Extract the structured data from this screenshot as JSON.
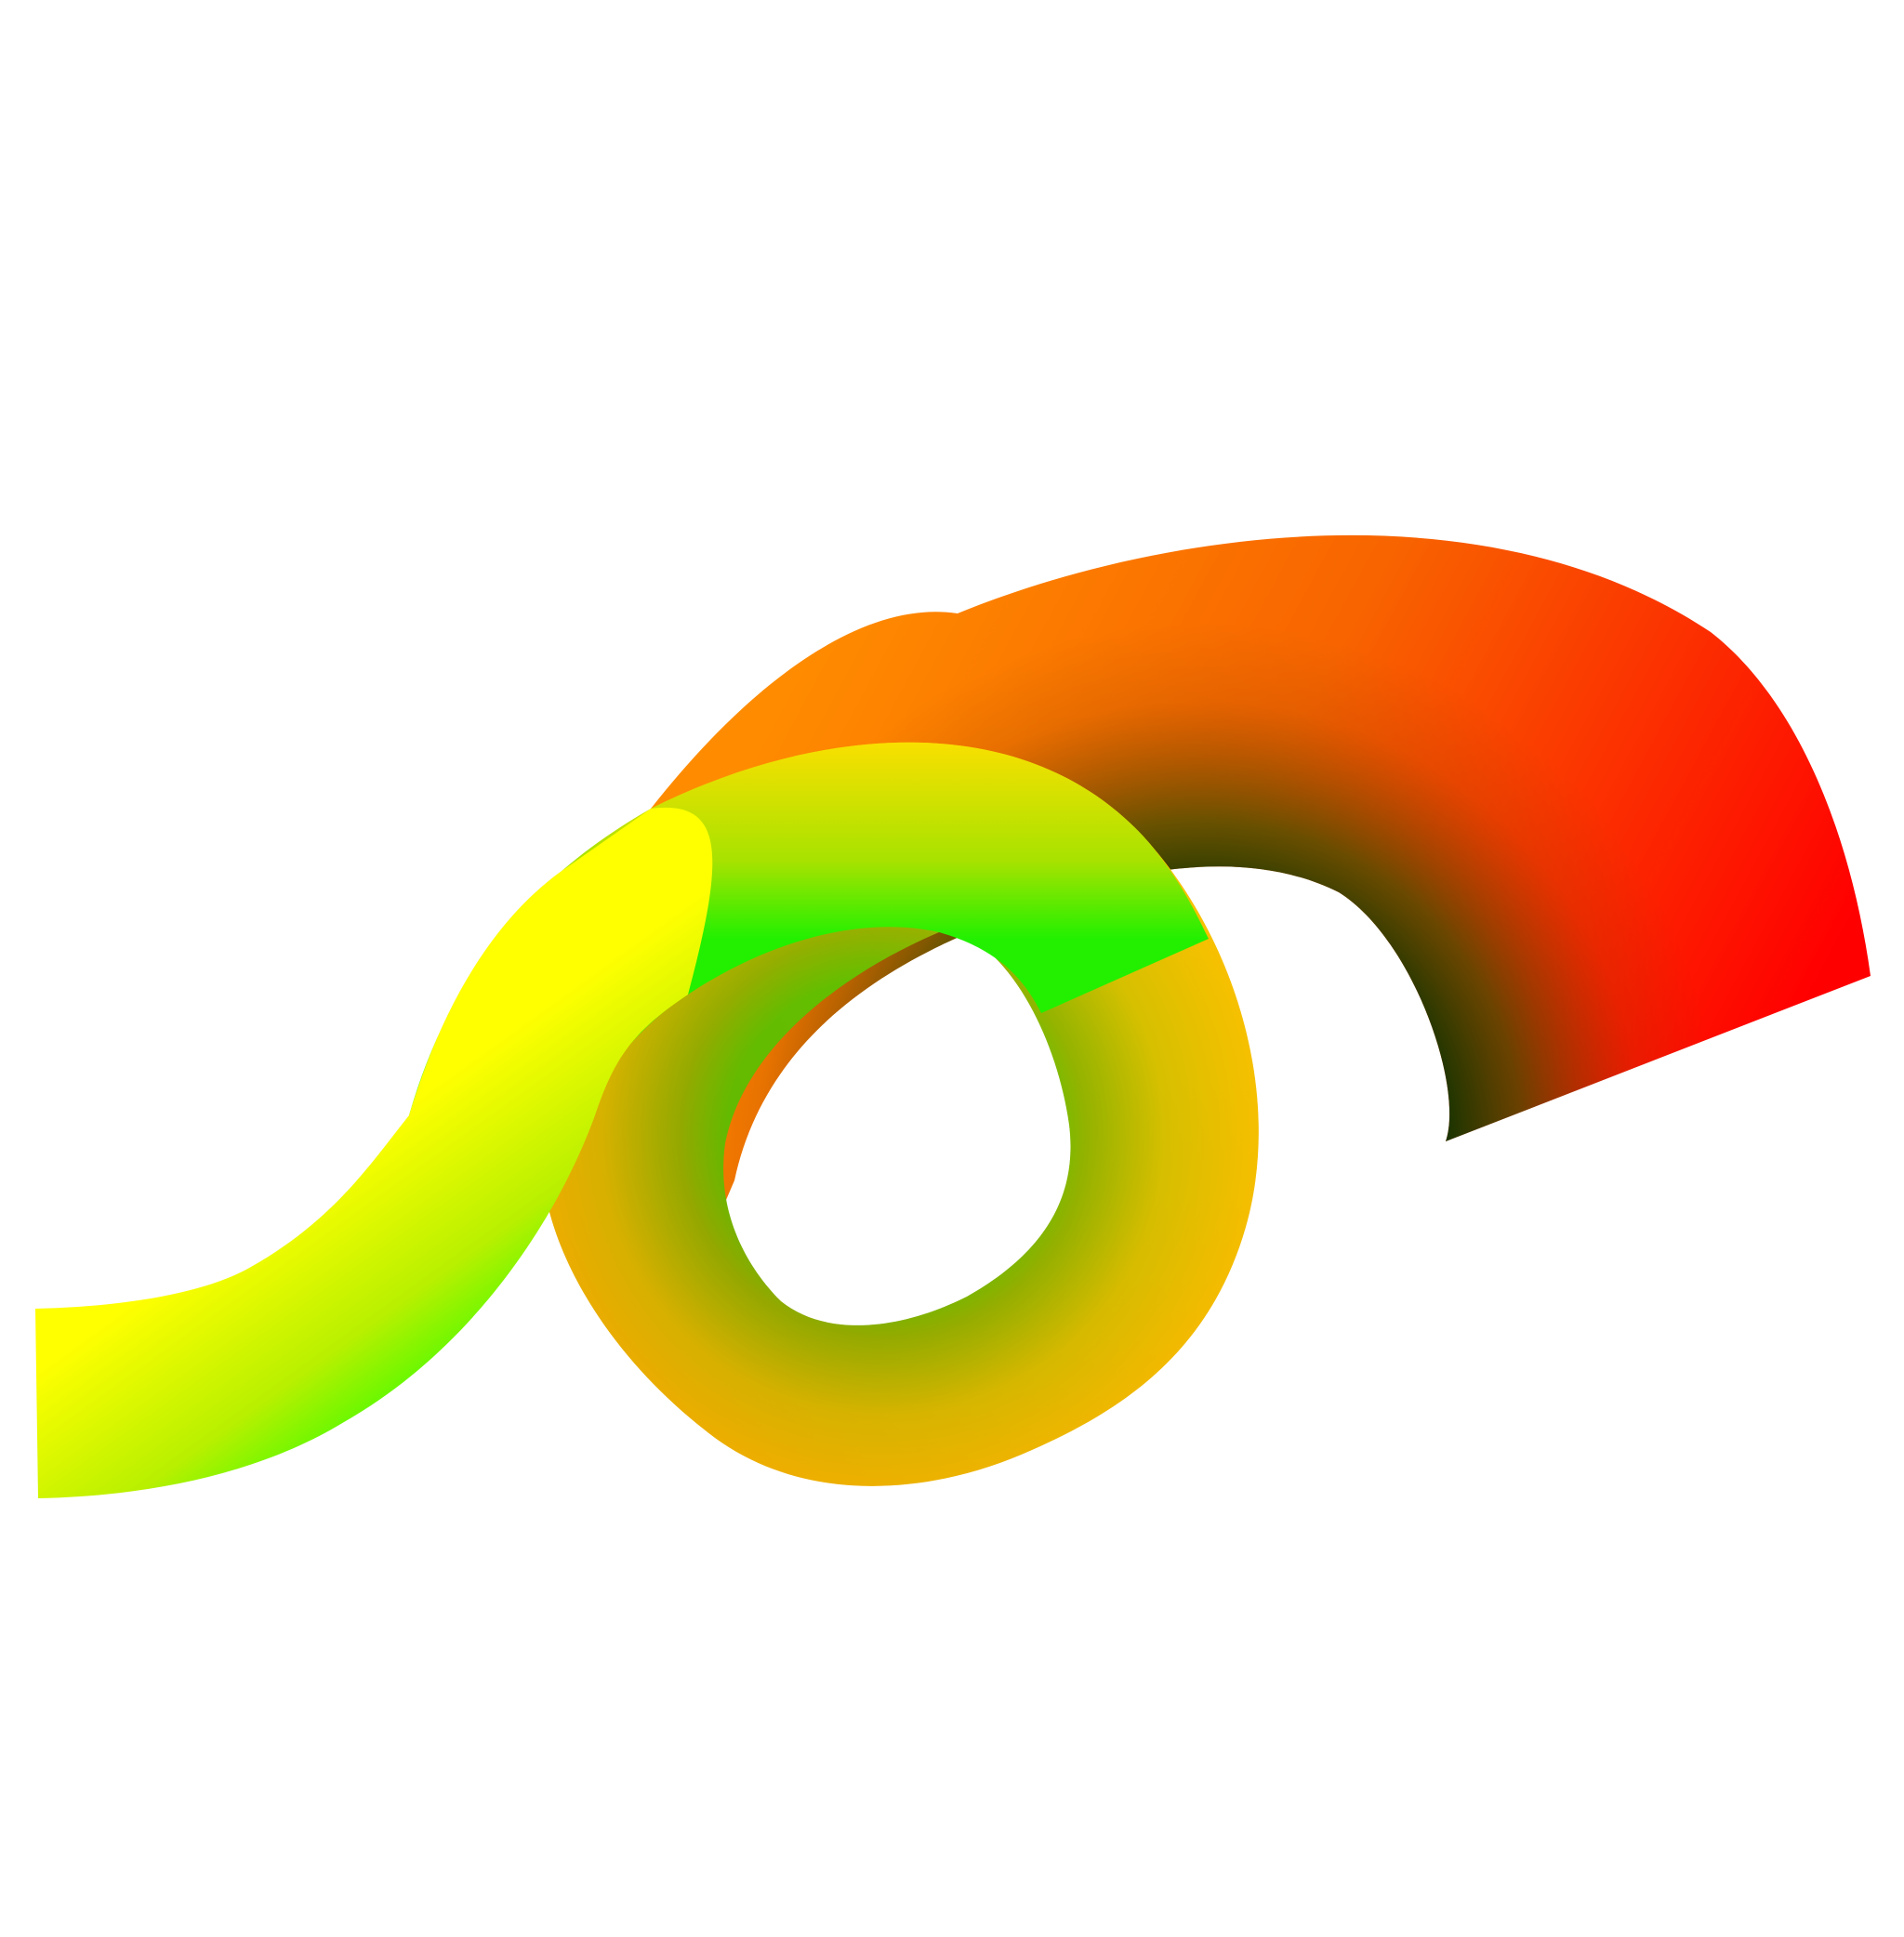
{
  "artwork": {
    "shapes": [
      {
        "name": "orange-red-arc-band",
        "colors": {
          "outer_start": "#ff8c00",
          "outer_end": "#ff0000",
          "inner": "#1f5a00"
        }
      },
      {
        "name": "yellow-green-loop-band",
        "colors": {
          "outer": "#ffee00",
          "inner": "#22ee00"
        }
      },
      {
        "name": "yellow-green-tail-band",
        "colors": {
          "outer": "#ffff00",
          "inner": "#22ff00"
        }
      }
    ],
    "background": "#ffffff"
  }
}
